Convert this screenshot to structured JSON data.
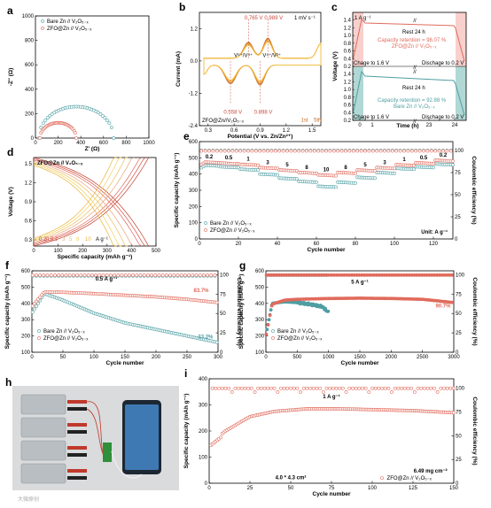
{
  "colors": {
    "bare": "#4e9ea3",
    "zfo": "#e06b5c",
    "cv_dark": "#c86a1e",
    "cv_light": "#f2c244",
    "cyan_fill": "#a9d8d5",
    "pink_fill": "#f6c4c0"
  },
  "chart_data": [
    {
      "id": "a",
      "panel": "a",
      "type": "scatter",
      "xlabel": "Z' (Ω)",
      "ylabel": "-Z'' (Ω)",
      "xlim": [
        0,
        1000
      ],
      "ylim": [
        0,
        1000
      ],
      "xticks": [
        "0",
        "200",
        "400",
        "600",
        "800",
        "1000"
      ],
      "yticks": [
        "0",
        "200",
        "400",
        "600",
        "800",
        "1000"
      ],
      "legend": [
        "Bare Zn // V₂O₅₋ₓ",
        "ZFO@Zn // V₂O₅₋ₓ"
      ],
      "series": [
        {
          "name": "Bare Zn // V₂O₅₋ₓ",
          "center": [
            360,
            0
          ],
          "radius": 330,
          "x_start": 30,
          "x_end": 690
        },
        {
          "name": "ZFO@Zn // V₂O₅₋ₓ",
          "center": [
            200,
            0
          ],
          "radius": 160,
          "x_start": 40,
          "x_end": 360
        }
      ]
    },
    {
      "id": "b",
      "panel": "b",
      "type": "line",
      "xlabel": "Potential (V vs. Zn/Zn²⁺)",
      "ylabel": "Current (mA)",
      "xlim": [
        0.2,
        1.6
      ],
      "ylim": [
        -2.4,
        1.8
      ],
      "xticks": [
        "0.3",
        "0.6",
        "0.9",
        "1.2",
        "1.5"
      ],
      "yticks": [
        "-2.4",
        "-1.2",
        "0.0",
        "1.2"
      ],
      "annotations": [
        "1 mV s⁻¹",
        "0.765 V",
        "0.989 V",
        "0.558 V",
        "0.898 V",
        "V⁵⁺/V⁴⁺",
        "V⁴⁺/V³⁺",
        "ZFO@Zn//V₂O₅₋ₓ",
        "1st",
        "5th"
      ],
      "peaks_anodic": [
        0.765,
        0.989
      ],
      "peaks_cathodic": [
        0.558,
        0.898
      ],
      "cycles": 5
    },
    {
      "id": "c",
      "panel": "c",
      "type": "line",
      "xlabel": "Time (h)",
      "ylabel": "Voltage (V)",
      "xlim": [
        0,
        25
      ],
      "ylim": [
        0.2,
        1.6
      ],
      "xticks": [
        "0",
        "1",
        "23",
        "24"
      ],
      "yticks": [
        "0.2",
        "0.4",
        "0.6",
        "0.8",
        "1.0",
        "1.2",
        "1.4"
      ],
      "annotations": [
        "1 A g⁻¹",
        "Rest 24 h",
        "Capacity retention = 98.07 %",
        "ZFO@Zn // V₂O₅₋ₓ",
        "Chage to 1.6 V",
        "Dischage to 0.2 V",
        "Rest 24 h",
        "Capacity retention = 92.88 %",
        "Bare Zn // V₂O₅₋ₓ",
        "Chage to 1.6 V",
        "Dischage to 0.2 V"
      ],
      "retention": {
        "zfo": 98.07,
        "bare": 92.88
      }
    },
    {
      "id": "d",
      "panel": "d",
      "type": "line",
      "xlabel": "Specific capacity (mAh g⁻¹)",
      "ylabel": "Voltage (V)",
      "xlim": [
        0,
        500
      ],
      "ylim": [
        0.2,
        1.6
      ],
      "xticks": [
        "0",
        "100",
        "200",
        "300",
        "400",
        "500"
      ],
      "yticks": [
        "0.3",
        "0.6",
        "0.9",
        "1.2",
        "1.5"
      ],
      "annotations": [
        "ZFO@Zn // V₂O₅₋ₓ",
        "0.2",
        "0.5",
        "1",
        "3",
        "5",
        "8",
        "10",
        "A g⁻¹"
      ],
      "rates": [
        0.2,
        0.5,
        1,
        3,
        5,
        8,
        10
      ],
      "capacities": [
        470,
        455,
        440,
        410,
        385,
        360,
        340
      ]
    },
    {
      "id": "e",
      "panel": "e",
      "type": "scatter",
      "xlabel": "Cycle number",
      "ylabel": "Specific capacity (mAh g⁻¹)",
      "y2label": "Coulombic efficiency (%)",
      "xlim": [
        0,
        130
      ],
      "ylim": [
        0,
        600
      ],
      "y2lim": [
        0,
        110
      ],
      "xticks": [
        "0",
        "20",
        "40",
        "60",
        "80",
        "100",
        "120"
      ],
      "yticks": [
        "0",
        "100",
        "200",
        "300",
        "400",
        "500",
        "600"
      ],
      "y2ticks": [
        "0",
        "25",
        "50",
        "75",
        "100"
      ],
      "rate_labels": [
        "0.2",
        "0.5",
        "1",
        "3",
        "5",
        "8",
        "10",
        "8",
        "5",
        "3",
        "1",
        "0.5",
        "0.2"
      ],
      "unit": "Unit: A g⁻¹",
      "legend": [
        "Bare Zn // V₂O₅₋ₓ",
        "ZFO@Zn // V₂O₅₋ₓ"
      ],
      "series": [
        {
          "name": "Bare Zn // V₂O₅₋ₓ",
          "values": [
            455,
            445,
            430,
            400,
            375,
            355,
            325,
            350,
            380,
            410,
            435,
            445,
            462
          ]
        },
        {
          "name": "ZFO@Zn // V₂O₅₋ₓ",
          "values": [
            475,
            468,
            460,
            440,
            425,
            410,
            395,
            410,
            425,
            440,
            458,
            470,
            485
          ]
        }
      ],
      "ce": 100
    },
    {
      "id": "f",
      "panel": "f",
      "type": "scatter",
      "xlabel": "Cycle number",
      "ylabel": "Specific capacity (mAh g⁻¹)",
      "y2label": "Coulombic efficiency (%)",
      "xlim": [
        0,
        300
      ],
      "ylim": [
        100,
        600
      ],
      "y2lim": [
        0,
        105
      ],
      "xticks": [
        "0",
        "50",
        "100",
        "150",
        "200",
        "250",
        "300"
      ],
      "yticks": [
        "100",
        "200",
        "300",
        "400",
        "500",
        "600"
      ],
      "y2ticks": [
        "0",
        "25",
        "50",
        "75",
        "100"
      ],
      "annotations": [
        "0.5 A g⁻¹",
        "83.7%",
        "33.2%"
      ],
      "legend": [
        "Bare Zn // V₂O₅₋ₓ",
        "ZFO@Zn // V₂O₅₋ₓ"
      ],
      "series": [
        {
          "name": "Bare Zn // V₂O₅₋ₓ",
          "x": [
            0,
            20,
            50,
            100,
            150,
            200,
            250,
            300
          ],
          "values": [
            340,
            460,
            420,
            340,
            280,
            240,
            200,
            160
          ]
        },
        {
          "name": "ZFO@Zn // V₂O₅₋ₓ",
          "x": [
            0,
            20,
            50,
            100,
            150,
            200,
            250,
            300
          ],
          "values": [
            380,
            470,
            468,
            460,
            450,
            440,
            425,
            405
          ]
        }
      ]
    },
    {
      "id": "g",
      "panel": "g",
      "type": "scatter",
      "xlabel": "Cycle number",
      "ylabel": "Specific capacity (mAh g⁻¹)",
      "y2label": "Coulombic efficiency (%)",
      "xlim": [
        0,
        3000
      ],
      "ylim": [
        100,
        600
      ],
      "y2lim": [
        0,
        105
      ],
      "xticks": [
        "0",
        "500",
        "1000",
        "1500",
        "2000",
        "2500",
        "3000"
      ],
      "yticks": [
        "100",
        "200",
        "300",
        "400",
        "500",
        "600"
      ],
      "y2ticks": [
        "0",
        "25",
        "50",
        "75",
        "100"
      ],
      "annotations": [
        "5 A g⁻¹",
        "90.7%"
      ],
      "legend": [
        "Bare Zn // V₂O₅₋ₓ",
        "ZFO@Zn // V₂O₅₋ₓ"
      ],
      "series": [
        {
          "name": "Bare Zn // V₂O₅₋ₓ",
          "x": [
            0,
            100,
            300,
            500,
            700,
            900,
            1000
          ],
          "values": [
            200,
            400,
            410,
            405,
            395,
            380,
            345
          ]
        },
        {
          "name": "ZFO@Zn // V₂O₅₋ₓ",
          "x": [
            0,
            100,
            300,
            500,
            1000,
            1500,
            2000,
            2500,
            3000
          ],
          "values": [
            200,
            395,
            420,
            425,
            430,
            432,
            430,
            425,
            405
          ]
        }
      ]
    },
    {
      "id": "i",
      "panel": "i",
      "type": "scatter",
      "xlabel": "Cycle number",
      "ylabel": "Specific capacity (mAh g⁻¹)",
      "y2label": "Coulombic efficiency (%)",
      "xlim": [
        0,
        150
      ],
      "ylim": [
        0,
        400
      ],
      "y2lim": [
        0,
        110
      ],
      "xticks": [
        "0",
        "25",
        "50",
        "75",
        "100",
        "125",
        "150"
      ],
      "yticks": [
        "0",
        "100",
        "200",
        "300",
        "400"
      ],
      "y2ticks": [
        "0",
        "25",
        "50",
        "75",
        "100"
      ],
      "annotations": [
        "1 A g⁻¹",
        "6.49 mg cm⁻²",
        "4.0 * 4.3 cm²"
      ],
      "legend": [
        "ZFO@Zn // V₂O₅₋ₓ"
      ],
      "series": [
        {
          "name": "ZFO@Zn // V₂O₅₋ₓ",
          "x": [
            0,
            10,
            25,
            40,
            60,
            80,
            100,
            125,
            150
          ],
          "values": [
            150,
            200,
            255,
            275,
            285,
            285,
            282,
            278,
            270
          ]
        }
      ]
    }
  ],
  "photo": {
    "panel": "h",
    "description_icon": "device-photo"
  },
  "watermark": "大微原创"
}
